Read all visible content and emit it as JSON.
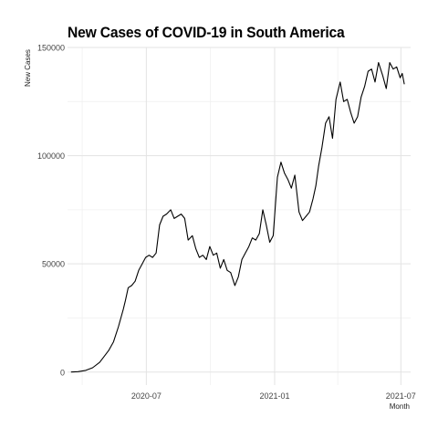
{
  "chart_data": {
    "type": "line",
    "title": "New Cases of COVID-19 in South America",
    "xlabel": "Month",
    "ylabel": "New Cases",
    "x_ticks": [
      "2020-07",
      "2021-01",
      "2021-07"
    ],
    "y_ticks": [
      0,
      50000,
      100000,
      150000
    ],
    "y_tick_labels": [
      "0",
      "50000",
      "100000",
      "150000"
    ],
    "xlim": [
      "2020-03-10",
      "2021-07-15"
    ],
    "ylim": [
      -6000,
      150000
    ],
    "grid": true,
    "series": [
      {
        "x": [
          "2020-03-15",
          "2020-03-25",
          "2020-04-05",
          "2020-04-15",
          "2020-04-25",
          "2020-05-01",
          "2020-05-08",
          "2020-05-15",
          "2020-05-22",
          "2020-05-29",
          "2020-06-01",
          "2020-06-05",
          "2020-06-10",
          "2020-06-15",
          "2020-06-20",
          "2020-06-25",
          "2020-06-30",
          "2020-07-05",
          "2020-07-10",
          "2020-07-15",
          "2020-07-20",
          "2020-07-25",
          "2020-07-30",
          "2020-08-05",
          "2020-08-10",
          "2020-08-15",
          "2020-08-20",
          "2020-08-25",
          "2020-08-30",
          "2020-09-05",
          "2020-09-10",
          "2020-09-15",
          "2020-09-20",
          "2020-09-25",
          "2020-09-30",
          "2020-10-05",
          "2020-10-10",
          "2020-10-15",
          "2020-10-20",
          "2020-10-25",
          "2020-10-30",
          "2020-11-05",
          "2020-11-10",
          "2020-11-15",
          "2020-11-20",
          "2020-11-25",
          "2020-11-30",
          "2020-12-05",
          "2020-12-10",
          "2020-12-15",
          "2020-12-20",
          "2020-12-25",
          "2020-12-30",
          "2021-01-05",
          "2021-01-10",
          "2021-01-15",
          "2021-01-20",
          "2021-01-25",
          "2021-01-30",
          "2021-02-05",
          "2021-02-10",
          "2021-02-15",
          "2021-02-20",
          "2021-02-25",
          "2021-03-01",
          "2021-03-05",
          "2021-03-10",
          "2021-03-15",
          "2021-03-20",
          "2021-03-25",
          "2021-03-30",
          "2021-04-05",
          "2021-04-10",
          "2021-04-15",
          "2021-04-20",
          "2021-04-25",
          "2021-04-30",
          "2021-05-05",
          "2021-05-10",
          "2021-05-15",
          "2021-05-20",
          "2021-05-25",
          "2021-05-30",
          "2021-06-05",
          "2021-06-10",
          "2021-06-15",
          "2021-06-20",
          "2021-06-25",
          "2021-06-30",
          "2021-07-03",
          "2021-07-06"
        ],
        "values": [
          50,
          200,
          800,
          2000,
          4500,
          7000,
          10000,
          14000,
          21000,
          29000,
          33000,
          39000,
          40000,
          42000,
          47000,
          50000,
          53000,
          54000,
          53000,
          55000,
          68000,
          72000,
          73000,
          75000,
          71000,
          72000,
          73000,
          71000,
          61000,
          63000,
          57000,
          53000,
          54000,
          52000,
          58000,
          54000,
          55000,
          48000,
          52000,
          47000,
          46000,
          40000,
          44000,
          52000,
          55000,
          58000,
          62000,
          61000,
          64000,
          75000,
          68000,
          60000,
          63000,
          90000,
          97000,
          92000,
          89000,
          85000,
          91000,
          74000,
          70000,
          72000,
          74000,
          80000,
          86000,
          95000,
          104000,
          115000,
          118000,
          108000,
          126000,
          134000,
          125000,
          126000,
          120000,
          115000,
          118000,
          127000,
          132000,
          139000,
          140000,
          134000,
          143000,
          137000,
          131000,
          143000,
          140000,
          141000,
          136000,
          138000,
          133000
        ]
      }
    ]
  }
}
